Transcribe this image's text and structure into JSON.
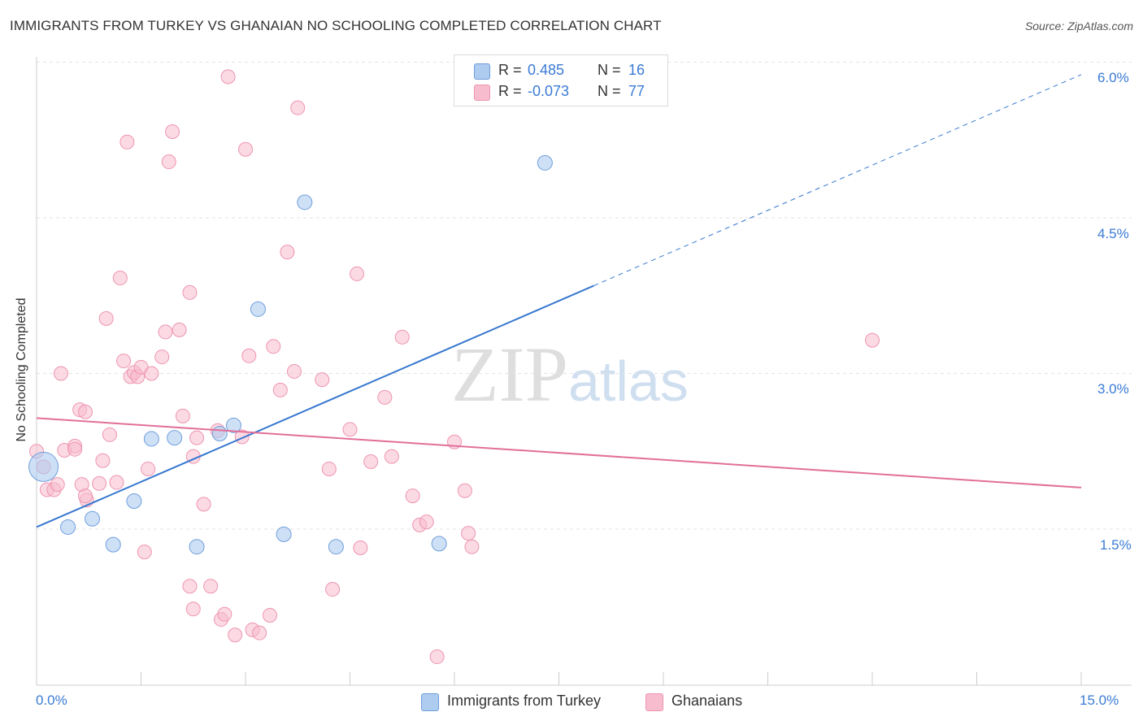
{
  "header": {
    "title": "IMMIGRANTS FROM TURKEY VS GHANAIAN NO SCHOOLING COMPLETED CORRELATION CHART",
    "source": "Source: ZipAtlas.com"
  },
  "watermark": {
    "zip": "ZIP",
    "atlas": "atlas"
  },
  "legend_top": {
    "rows": [
      {
        "r_label": "R =",
        "r_value": "0.485",
        "n_label": "N =",
        "n_value": "16"
      },
      {
        "r_label": "R =",
        "r_value": "-0.073",
        "n_label": "N =",
        "n_value": "77"
      }
    ]
  },
  "legend_bottom": [
    "Immigrants from Turkey",
    "Ghanaians"
  ],
  "axis_labels": {
    "x_min": "0.0%",
    "x_max": "15.0%",
    "y_ticks": [
      "6.0%",
      "4.5%",
      "3.0%",
      "1.5%"
    ]
  },
  "colors": {
    "blue_fill": "#aecbf0",
    "blue_stroke": "#6f9fdb",
    "blue_line": "#3777cf",
    "pink_fill": "#f7bccd",
    "pink_stroke": "#ee95b0",
    "pink_line": "#e26f99",
    "grid": "#e3e3e3",
    "tick_text": "#3a7bd5"
  },
  "chart_data": {
    "type": "scatter",
    "title": "IMMIGRANTS FROM TURKEY VS GHANAIAN NO SCHOOLING COMPLETED CORRELATION CHART",
    "xlabel": "",
    "ylabel": "No Schooling Completed",
    "xlim": [
      0,
      15
    ],
    "ylim": [
      0,
      6.3
    ],
    "x_ticks": [
      0,
      15
    ],
    "y_ticks": [
      1.5,
      3.0,
      4.5,
      6.0
    ],
    "grid": "horizontal dashed",
    "legend": "bottom-center",
    "series": [
      {
        "name": "Immigrants from Turkey",
        "R": 0.485,
        "N": 16,
        "trend": {
          "x0": 0,
          "y0": 1.52,
          "x1": 15,
          "y1": 5.88,
          "solid_until_x": 8.0
        },
        "points": [
          [
            0.1,
            2.1
          ],
          [
            0.45,
            1.52
          ],
          [
            0.8,
            1.6
          ],
          [
            1.1,
            1.35
          ],
          [
            1.4,
            1.77
          ],
          [
            1.65,
            2.37
          ],
          [
            1.98,
            2.38
          ],
          [
            2.3,
            1.33
          ],
          [
            2.63,
            2.42
          ],
          [
            2.83,
            2.5
          ],
          [
            3.18,
            3.62
          ],
          [
            3.55,
            1.45
          ],
          [
            3.85,
            4.65
          ],
          [
            4.3,
            1.33
          ],
          [
            5.78,
            1.36
          ],
          [
            7.3,
            5.03
          ]
        ],
        "sizes": [
          18,
          9,
          9,
          9,
          9,
          9,
          9,
          9,
          9,
          9,
          9,
          9,
          9,
          9,
          9,
          9
        ]
      },
      {
        "name": "Ghanaians",
        "R": -0.073,
        "N": 77,
        "trend": {
          "x0": 0,
          "y0": 2.57,
          "x1": 15,
          "y1": 1.9
        },
        "points": [
          [
            0.0,
            2.25
          ],
          [
            0.1,
            2.1
          ],
          [
            0.15,
            1.88
          ],
          [
            0.25,
            1.88
          ],
          [
            0.3,
            1.93
          ],
          [
            0.35,
            3.0
          ],
          [
            0.4,
            2.26
          ],
          [
            0.55,
            2.3
          ],
          [
            0.55,
            2.27
          ],
          [
            0.62,
            2.65
          ],
          [
            0.65,
            1.93
          ],
          [
            0.7,
            2.63
          ],
          [
            0.72,
            1.78
          ],
          [
            0.7,
            1.82
          ],
          [
            0.9,
            1.94
          ],
          [
            0.95,
            2.16
          ],
          [
            1.0,
            3.53
          ],
          [
            1.05,
            2.41
          ],
          [
            1.15,
            1.95
          ],
          [
            1.2,
            3.92
          ],
          [
            1.25,
            3.12
          ],
          [
            1.3,
            5.23
          ],
          [
            1.35,
            2.97
          ],
          [
            1.4,
            3.01
          ],
          [
            1.45,
            2.97
          ],
          [
            1.5,
            3.06
          ],
          [
            1.55,
            1.28
          ],
          [
            1.6,
            2.08
          ],
          [
            1.65,
            3.0
          ],
          [
            1.8,
            3.16
          ],
          [
            1.85,
            3.4
          ],
          [
            1.9,
            5.04
          ],
          [
            1.95,
            5.33
          ],
          [
            2.05,
            3.42
          ],
          [
            2.1,
            2.59
          ],
          [
            2.2,
            3.78
          ],
          [
            2.25,
            2.2
          ],
          [
            2.2,
            0.95
          ],
          [
            2.25,
            0.73
          ],
          [
            2.3,
            2.38
          ],
          [
            2.4,
            1.74
          ],
          [
            2.5,
            0.95
          ],
          [
            2.6,
            2.45
          ],
          [
            2.65,
            0.63
          ],
          [
            2.7,
            0.68
          ],
          [
            2.75,
            5.86
          ],
          [
            2.85,
            0.48
          ],
          [
            2.95,
            2.39
          ],
          [
            3.0,
            5.16
          ],
          [
            3.05,
            3.17
          ],
          [
            3.1,
            0.53
          ],
          [
            3.2,
            0.5
          ],
          [
            3.35,
            0.67
          ],
          [
            3.4,
            3.26
          ],
          [
            3.5,
            2.84
          ],
          [
            3.6,
            4.17
          ],
          [
            3.7,
            3.02
          ],
          [
            3.75,
            5.56
          ],
          [
            4.1,
            2.94
          ],
          [
            4.2,
            2.08
          ],
          [
            4.25,
            0.92
          ],
          [
            4.5,
            2.46
          ],
          [
            4.6,
            3.96
          ],
          [
            4.65,
            1.32
          ],
          [
            4.8,
            2.15
          ],
          [
            5.0,
            2.77
          ],
          [
            5.1,
            2.2
          ],
          [
            5.25,
            3.35
          ],
          [
            5.4,
            1.82
          ],
          [
            5.5,
            1.54
          ],
          [
            5.6,
            1.57
          ],
          [
            5.75,
            0.27
          ],
          [
            6.0,
            2.34
          ],
          [
            6.15,
            1.87
          ],
          [
            6.2,
            1.46
          ],
          [
            6.25,
            1.33
          ],
          [
            12.0,
            3.32
          ]
        ]
      }
    ]
  }
}
